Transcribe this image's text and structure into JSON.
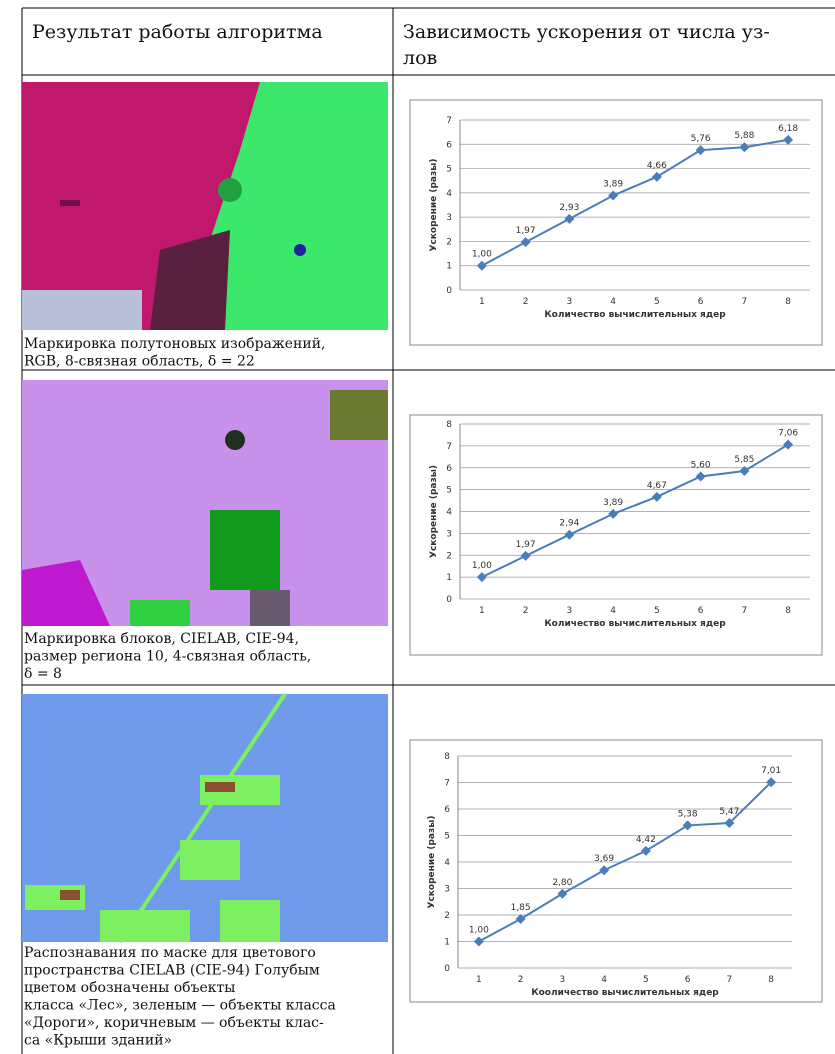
{
  "table": {
    "headers": [
      [
        "Результат работы алгоритма"
      ],
      [
        "Зависимость ускорения от числа уз-",
        "лов"
      ]
    ],
    "rows": [
      {
        "caption": [
          "Маркировка полутоновых изображений,",
          "RGB, 8-связная область, δ = 22"
        ]
      },
      {
        "caption": [
          "Маркировка блоков, CIELAB, CIE-94,",
          "размер региона 10, 4-связная область,",
          "δ = 8"
        ]
      },
      {
        "caption": [
          "Распознавания по маске для цветового",
          "пространства CIELAB (CIE-94) Голубым",
          "цветом обозначены объекты",
          "класса «Лес», зеленым — объекты класса",
          "«Дороги», коричневым — объекты клас-",
          "са «Крыши зданий»"
        ]
      }
    ]
  },
  "chart_data": [
    {
      "type": "line",
      "categories": [
        "1",
        "2",
        "3",
        "4",
        "5",
        "6",
        "7",
        "8"
      ],
      "values": [
        1,
        1.97,
        2.93,
        3.89,
        4.66,
        5.76,
        5.88,
        6.18
      ],
      "value_labels": [
        "1,00",
        "1,97",
        "2,93",
        "3,89",
        "4,66",
        "5,76",
        "5,88",
        "6,18"
      ],
      "color": "#4a7ebb",
      "ylim": [
        0,
        7
      ],
      "yticks": [
        0,
        1,
        2,
        3,
        4,
        5,
        6,
        7
      ],
      "xlabel": "Количество вычислительных ядер",
      "ylabel": "Ускорение (разы)",
      "grid": true
    },
    {
      "type": "line",
      "categories": [
        "1",
        "2",
        "3",
        "4",
        "5",
        "6",
        "7",
        "8"
      ],
      "values": [
        1,
        1.97,
        2.94,
        3.89,
        4.67,
        5.6,
        5.85,
        7.06
      ],
      "value_labels": [
        "1,00",
        "1,97",
        "2,94",
        "3,89",
        "4,67",
        "5,60",
        "5,85",
        "7,06"
      ],
      "color": "#4a7ebb",
      "ylim": [
        0,
        8
      ],
      "yticks": [
        0,
        1,
        2,
        3,
        4,
        5,
        6,
        7,
        8
      ],
      "xlabel": "Количество вычислительных ядер",
      "ylabel": "Ускорение (разы)",
      "grid": true
    },
    {
      "type": "line",
      "categories": [
        "1",
        "2",
        "3",
        "4",
        "5",
        "6",
        "7",
        "8"
      ],
      "values": [
        1,
        1.85,
        2.8,
        3.69,
        4.42,
        5.38,
        5.47,
        7.01
      ],
      "value_labels": [
        "1,00",
        "1,85",
        "2,80",
        "3,69",
        "4,42",
        "5,38",
        "5,47",
        "7,01"
      ],
      "color": "#4a7ebb",
      "ylim": [
        0,
        8
      ],
      "yticks": [
        0,
        1,
        2,
        3,
        4,
        5,
        6,
        7,
        8
      ],
      "xlabel": "Кооличество вычислительных ядер",
      "ylabel": "Ускорение (разы)",
      "grid": true
    }
  ]
}
